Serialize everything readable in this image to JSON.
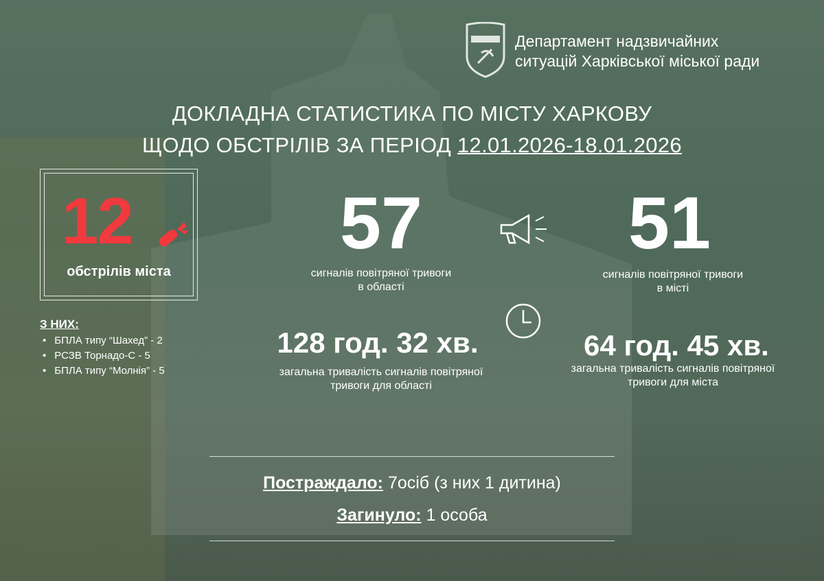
{
  "header": {
    "logo_text": "ДЕПАРТАМЕНТ НАДЗВИЧАЙНИХ СИТУАЦІЙ ХАРКІВ",
    "dept_line1": "Департамент надзвичайних",
    "dept_line2": "ситуацій Харківської міської ради"
  },
  "title": {
    "line1": "ДОКЛАДНА СТАТИСТИКА ПО МІСТУ ХАРКОВУ",
    "line2_prefix": "ЩОДО ОБСТРІЛІВ ЗА ПЕРІОД ",
    "period": "12.01.2026-18.01.2026"
  },
  "shelling": {
    "count": "12",
    "label": "обстрілів міста",
    "breakdown_title": "З НИХ:",
    "items": [
      "БПЛА типу “Шахед” - 2",
      "РСЗВ Торнадо-С - 5",
      "БПЛА типу “Молнія” - 5"
    ],
    "accent": "#f03a3e"
  },
  "alerts": {
    "region_count": "57",
    "region_label1": "сигналів повітряної тривоги",
    "region_label2": "в області",
    "city_count": "51",
    "city_label1": "сигналів повітряної тривоги",
    "city_label2": "в місті"
  },
  "duration": {
    "region": "128 год. 32 хв.",
    "region_label1": "загальна тривалість сигналів повітряної",
    "region_label2": "тривоги для області",
    "city": "64 год. 45 хв.",
    "city_label1": "загальна тривалість сигналів повітряної",
    "city_label2": "тривоги для міста"
  },
  "casualties": {
    "injured_label": "Постраждало:",
    "injured_value": " 7осіб (з них 1 дитина)",
    "killed_label": "Загинуло:",
    "killed_value": " 1 особа"
  },
  "icons": [
    "shield-logo",
    "missile-icon",
    "megaphone-icon",
    "clock-icon"
  ]
}
